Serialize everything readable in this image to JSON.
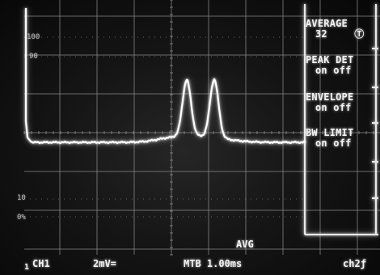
{
  "grid_labels": {
    "top": "100",
    "ninety": "90",
    "ten": "10",
    "zero": "0%"
  },
  "menu": {
    "average_label": "AVERAGE",
    "average_value": "32",
    "average_knob": "Ⓣ",
    "peak_det_label": "PEAK DET",
    "peak_det_state": "on off",
    "envelope_label": "ENVELOPE",
    "envelope_state": "on off",
    "bw_limit_label": "BW LIMIT",
    "bw_limit_state": "on off"
  },
  "status": {
    "mode": "AVG",
    "channel": "CH1",
    "scale": "2mV=",
    "timebase": "MTB 1.00ms",
    "trigger": "ch2ƒ",
    "ground_marker": "1"
  },
  "colors": {
    "trace": "#ffffff",
    "grid": "#8a8a8a",
    "background": "#111111"
  }
}
